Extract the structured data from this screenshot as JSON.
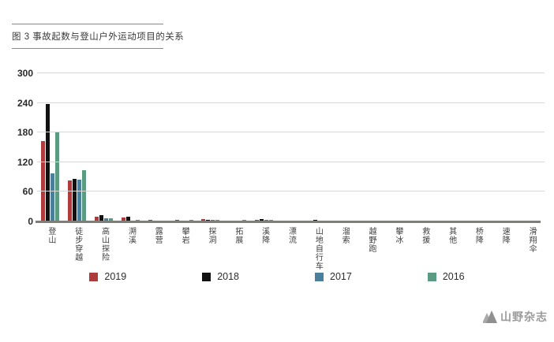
{
  "title": "图 3 事故起数与登山户外运动项目的关系",
  "footer": {
    "brand": "山野杂志",
    "logo_icon": "mountain-logo-icon"
  },
  "chart_data": {
    "type": "bar",
    "title": "图 3 事故起数与登山户外运动项目的关系",
    "xlabel": "",
    "ylabel": "",
    "ylim": [
      0,
      300
    ],
    "yticks": [
      0,
      60,
      120,
      180,
      240,
      300
    ],
    "grid": true,
    "legend_position": "bottom",
    "categories": [
      "登山",
      "徒步穿越",
      "高山探险",
      "溯溪",
      "露营",
      "攀岩",
      "探洞",
      "拓展",
      "溪降",
      "漂流",
      "山地自行车",
      "溜索",
      "越野跑",
      "攀冰",
      "救援",
      "其他",
      "桥降",
      "速降",
      "滑翔伞"
    ],
    "series": [
      {
        "name": "2019",
        "color": "#b03b3c",
        "values": [
          163,
          83,
          9,
          8,
          3,
          3,
          5,
          0,
          4,
          0,
          0,
          0,
          0,
          0,
          0,
          0,
          0,
          0,
          0
        ]
      },
      {
        "name": "2018",
        "color": "#121212",
        "values": [
          238,
          86,
          12,
          10,
          0,
          0,
          4,
          0,
          5,
          0,
          3,
          0,
          0,
          0,
          0,
          0,
          0,
          0,
          0
        ]
      },
      {
        "name": "2017",
        "color": "#4a809b",
        "values": [
          98,
          84,
          7,
          2,
          0,
          2,
          4,
          0,
          3,
          0,
          0,
          0,
          0,
          0,
          0,
          0,
          0,
          0,
          0
        ]
      },
      {
        "name": "2016",
        "color": "#5a9b81",
        "values": [
          181,
          103,
          6,
          4,
          0,
          3,
          3,
          3,
          4,
          0,
          0,
          0,
          2,
          0,
          0,
          2,
          0,
          0,
          0
        ]
      }
    ],
    "axis_colors": {
      "gridline": "#d8d8d6",
      "baseline": "#7e7e7a",
      "tick_text": "#2b2b2b"
    }
  }
}
